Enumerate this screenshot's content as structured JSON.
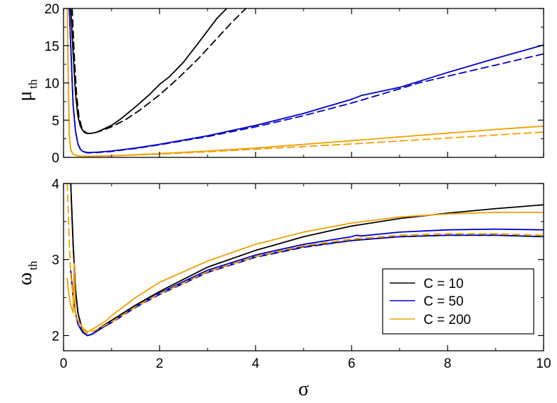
{
  "colors": {
    "C10": "#000000",
    "C50": "#0000cc",
    "C200": "#f0a000"
  },
  "chart_data": [
    {
      "type": "line",
      "panel": "top",
      "title": "",
      "xlabel": "",
      "ylabel": "μ",
      "ylabel_sub": "th",
      "xlim": [
        0,
        10
      ],
      "ylim": [
        0,
        20
      ],
      "xticks": [
        0,
        2,
        4,
        6,
        8,
        10
      ],
      "yticks": [
        0,
        5,
        10,
        15,
        20
      ],
      "ytick_labels": [
        "0",
        "5",
        "10",
        "15",
        "20"
      ],
      "show_xtick_labels": false,
      "grid": false,
      "series": [
        {
          "color_key": "C10",
          "dash": "solid",
          "x": [
            0.15,
            0.2,
            0.25,
            0.3,
            0.35,
            0.4,
            0.45,
            0.5,
            0.6,
            0.7,
            0.8,
            1.0,
            1.2,
            1.5,
            1.8,
            2.0,
            2.2,
            2.5,
            2.8,
            3.0,
            3.2,
            3.4
          ],
          "y": [
            20,
            14,
            8.5,
            5.5,
            4.2,
            3.6,
            3.3,
            3.2,
            3.25,
            3.4,
            3.7,
            4.3,
            5.2,
            6.8,
            8.5,
            9.8,
            10.8,
            12.8,
            15.3,
            17.0,
            18.7,
            20.0
          ]
        },
        {
          "color_key": "C10",
          "dash": "dashed",
          "x": [
            0.18,
            0.22,
            0.27,
            0.32,
            0.38,
            0.45,
            0.5,
            0.6,
            0.7,
            0.8,
            1.0,
            1.3,
            1.6,
            2.0,
            2.4,
            2.8,
            3.2,
            3.5,
            3.8
          ],
          "y": [
            20,
            14,
            8.5,
            5.5,
            4.0,
            3.4,
            3.2,
            3.25,
            3.4,
            3.6,
            4.1,
            5.1,
            6.4,
            8.4,
            10.7,
            13.2,
            16.0,
            18.1,
            20.0
          ]
        },
        {
          "color_key": "C50",
          "dash": "solid",
          "x": [
            0.12,
            0.15,
            0.2,
            0.25,
            0.3,
            0.35,
            0.4,
            0.5,
            0.7,
            1.0,
            1.5,
            2.0,
            3.0,
            4.0,
            5.0,
            6.0,
            6.2,
            7.0,
            8.0,
            9.0,
            10.0
          ],
          "y": [
            20,
            15,
            7.0,
            3.5,
            1.8,
            1.1,
            0.8,
            0.65,
            0.7,
            0.85,
            1.25,
            1.75,
            2.9,
            4.3,
            5.9,
            7.8,
            8.3,
            9.4,
            11.4,
            13.3,
            15.1
          ]
        },
        {
          "color_key": "C50",
          "dash": "dashed",
          "x": [
            0.12,
            0.15,
            0.2,
            0.25,
            0.3,
            0.35,
            0.4,
            0.5,
            0.7,
            1.0,
            1.5,
            2.0,
            3.0,
            4.0,
            5.0,
            6.0,
            7.0,
            7.4,
            8.0,
            9.0,
            10.0
          ],
          "y": [
            20,
            15,
            7.0,
            3.5,
            1.8,
            1.1,
            0.8,
            0.6,
            0.65,
            0.8,
            1.2,
            1.7,
            2.8,
            4.1,
            5.6,
            7.3,
            9.2,
            10.0,
            10.9,
            12.4,
            13.9
          ]
        },
        {
          "color_key": "C200",
          "dash": "solid",
          "x": [
            0.08,
            0.1,
            0.12,
            0.15,
            0.2,
            0.3,
            0.4,
            0.5,
            0.7,
            1.0,
            1.5,
            2.0,
            3.0,
            4.0,
            5.0,
            6.0,
            7.0,
            8.0,
            9.0,
            10.0
          ],
          "y": [
            20,
            10.0,
            3.0,
            1.0,
            0.4,
            0.2,
            0.15,
            0.15,
            0.17,
            0.22,
            0.35,
            0.5,
            0.85,
            1.25,
            1.75,
            2.25,
            2.75,
            3.25,
            3.75,
            4.2
          ]
        },
        {
          "color_key": "C200",
          "dash": "dashed",
          "x": [
            0.08,
            0.1,
            0.12,
            0.15,
            0.2,
            0.3,
            0.4,
            0.5,
            0.7,
            1.0,
            1.5,
            2.0,
            3.0,
            4.0,
            5.0,
            6.0,
            7.0,
            8.0,
            9.0,
            10.0
          ],
          "y": [
            20,
            10.0,
            3.0,
            1.0,
            0.4,
            0.2,
            0.15,
            0.15,
            0.17,
            0.2,
            0.32,
            0.45,
            0.75,
            1.1,
            1.45,
            1.8,
            2.2,
            2.6,
            3.0,
            3.4
          ]
        }
      ]
    },
    {
      "type": "line",
      "panel": "bottom",
      "title": "",
      "xlabel": "σ",
      "ylabel": "ω",
      "ylabel_sub": "th",
      "xlim": [
        0,
        10
      ],
      "ylim": [
        1.8,
        4.0
      ],
      "xticks": [
        0,
        2,
        4,
        6,
        8,
        10
      ],
      "xtick_labels": [
        "0",
        "2",
        "4",
        "6",
        "8",
        "10"
      ],
      "yticks": [
        2,
        3,
        4
      ],
      "ytick_labels": [
        "2",
        "3",
        "4"
      ],
      "grid": false,
      "legend": {
        "placement": "bottom-right",
        "entries": [
          {
            "label": "C = 10",
            "color_key": "C10"
          },
          {
            "label": "C = 50",
            "color_key": "C50"
          },
          {
            "label": "C = 200",
            "color_key": "C200"
          }
        ]
      },
      "series": [
        {
          "color_key": "C10",
          "dash": "solid",
          "x": [
            0.15,
            0.2,
            0.25,
            0.3,
            0.4,
            0.5,
            0.6,
            0.8,
            1.0,
            1.5,
            2.0,
            3.0,
            4.0,
            5.0,
            6.0,
            7.0,
            8.0,
            9.0,
            10.0
          ],
          "y": [
            4.0,
            3.2,
            2.6,
            2.3,
            2.05,
            2.0,
            2.02,
            2.12,
            2.2,
            2.4,
            2.58,
            2.9,
            3.12,
            3.3,
            3.44,
            3.54,
            3.61,
            3.67,
            3.72
          ]
        },
        {
          "color_key": "C10",
          "dash": "dashed",
          "x": [
            0.15,
            0.2,
            0.25,
            0.3,
            0.4,
            0.5,
            0.6,
            0.8,
            1.0,
            1.5,
            2.0,
            3.0,
            4.0,
            5.0,
            6.0,
            7.0,
            8.0,
            9.0,
            10.0
          ],
          "y": [
            4.0,
            3.2,
            2.6,
            2.3,
            2.05,
            2.0,
            2.02,
            2.1,
            2.18,
            2.38,
            2.55,
            2.84,
            3.04,
            3.17,
            3.25,
            3.3,
            3.32,
            3.32,
            3.3
          ]
        },
        {
          "color_key": "C50",
          "dash": "solid",
          "x": [
            0.15,
            0.2,
            0.25,
            0.3,
            0.4,
            0.5,
            0.6,
            0.8,
            1.0,
            1.5,
            2.0,
            3.0,
            4.0,
            5.0,
            6.0,
            6.1,
            6.2,
            7.0,
            8.0,
            9.0,
            10.0
          ],
          "y": [
            2.85,
            2.5,
            2.3,
            2.15,
            2.04,
            2.0,
            2.02,
            2.1,
            2.18,
            2.38,
            2.56,
            2.86,
            3.06,
            3.2,
            3.3,
            3.32,
            3.31,
            3.36,
            3.39,
            3.4,
            3.39
          ]
        },
        {
          "color_key": "C50",
          "dash": "dashed",
          "x": [
            0.15,
            0.2,
            0.25,
            0.3,
            0.4,
            0.5,
            0.6,
            0.8,
            1.0,
            1.5,
            2.0,
            3.0,
            4.0,
            5.0,
            6.0,
            7.0,
            8.0,
            9.0,
            10.0
          ],
          "y": [
            2.85,
            2.5,
            2.3,
            2.15,
            2.04,
            2.0,
            2.02,
            2.1,
            2.17,
            2.37,
            2.54,
            2.83,
            3.03,
            3.16,
            3.25,
            3.3,
            3.32,
            3.32,
            3.3
          ]
        },
        {
          "color_key": "C200",
          "dash": "solid",
          "x": [
            0.08,
            0.1,
            0.12,
            0.15,
            0.2,
            0.22,
            0.25,
            0.3,
            0.4,
            0.5,
            0.7,
            0.9,
            1.0,
            1.5,
            2.0,
            3.0,
            4.0,
            5.0,
            6.0,
            7.0,
            8.0,
            9.0,
            10.0
          ],
          "y": [
            2.75,
            2.6,
            2.5,
            2.4,
            2.3,
            2.95,
            2.25,
            2.2,
            2.1,
            2.05,
            2.12,
            2.2,
            2.26,
            2.5,
            2.7,
            2.98,
            3.2,
            3.36,
            3.48,
            3.56,
            3.6,
            3.62,
            3.62
          ]
        },
        {
          "color_key": "C200",
          "dash": "dashed",
          "x": [
            0.08,
            0.1,
            0.12,
            0.15,
            0.2,
            0.25,
            0.3,
            0.4,
            0.5,
            0.7,
            1.0,
            1.5,
            2.0,
            3.0,
            4.0,
            5.0,
            6.0,
            7.0,
            8.0,
            9.0,
            10.0
          ],
          "y": [
            4.0,
            3.6,
            3.2,
            2.8,
            2.5,
            2.3,
            2.2,
            2.08,
            2.03,
            2.08,
            2.18,
            2.38,
            2.55,
            2.84,
            3.04,
            3.18,
            3.27,
            3.32,
            3.34,
            3.34,
            3.32
          ]
        }
      ]
    }
  ]
}
